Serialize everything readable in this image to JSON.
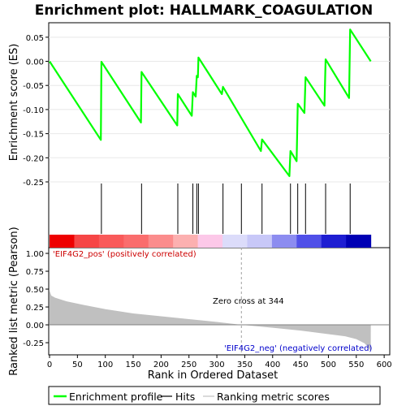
{
  "chart_data": {
    "type": "line",
    "title": "Enrichment plot: HALLMARK_COAGULATION",
    "top_panel": {
      "ylabel": "Enrichment score (ES)",
      "ylim": [
        -0.25,
        0.08
      ],
      "yticks": [
        0.05,
        0.0,
        -0.05,
        -0.1,
        -0.15,
        -0.2,
        -0.25
      ],
      "ytick_labels": [
        "0.05",
        "0.00",
        "-0.05",
        "-0.10",
        "-0.15",
        "-0.20",
        "-0.25"
      ],
      "series": {
        "x": [
          0,
          92,
          93,
          164,
          165,
          229,
          230,
          255,
          257,
          262,
          264,
          266,
          267,
          309,
          311,
          379,
          381,
          430,
          432,
          443,
          445,
          457,
          459,
          493,
          495,
          537,
          539,
          576
        ],
        "y": [
          0.0,
          -0.163,
          -0.001,
          -0.127,
          -0.022,
          -0.133,
          -0.068,
          -0.113,
          -0.064,
          -0.073,
          -0.03,
          -0.033,
          0.008,
          -0.068,
          -0.053,
          -0.186,
          -0.162,
          -0.238,
          -0.186,
          -0.207,
          -0.088,
          -0.107,
          -0.033,
          -0.092,
          0.004,
          -0.076,
          0.066,
          0.0
        ]
      },
      "color": "#00ff00"
    },
    "hits": [
      93,
      165,
      230,
      257,
      264,
      267,
      311,
      344,
      381,
      432,
      445,
      459,
      495,
      539
    ],
    "heat_bar": {
      "colors": [
        "#ee0000",
        "#f64646",
        "#f95a5a",
        "#fa6d6d",
        "#fb8c8c",
        "#fcb0b0",
        "#fcc8e8",
        "#dcdcfa",
        "#c8c8f8",
        "#8c8cf0",
        "#5050e8",
        "#1e1ed2",
        "#0000b4"
      ],
      "pos_label": "'EIF4G2_pos' (positively correlated)",
      "neg_label": "'EIF4G2_neg' (negatively correlated)",
      "pos_color": "#cc0000",
      "neg_color": "#0000cc"
    },
    "bottom_panel": {
      "ylabel": "Ranked list metric (Pearson)",
      "ylim": [
        -0.42,
        1.08
      ],
      "yticks": [
        1.0,
        0.75,
        0.5,
        0.25,
        0.0,
        -0.25
      ],
      "ytick_labels": [
        "1.00",
        "0.75",
        "0.50",
        "0.25",
        "0.00",
        "-0.25"
      ],
      "annotation": "Zero cross at 344",
      "zero_cross": 344,
      "fill_color": "#c0c0c0",
      "profile": {
        "x": [
          0,
          3,
          10,
          30,
          60,
          100,
          150,
          200,
          250,
          300,
          344,
          400,
          450,
          500,
          530,
          550,
          565,
          572,
          576
        ],
        "y": [
          0.48,
          0.41,
          0.38,
          0.33,
          0.28,
          0.22,
          0.16,
          0.12,
          0.08,
          0.04,
          0.0,
          -0.04,
          -0.08,
          -0.13,
          -0.16,
          -0.2,
          -0.26,
          -0.32,
          -0.38
        ]
      }
    },
    "xlabel": "Rank in Ordered Dataset",
    "xlim": [
      0,
      610
    ],
    "xticks": [
      0,
      50,
      100,
      150,
      200,
      250,
      300,
      350,
      400,
      450,
      500,
      550,
      600
    ],
    "legend": {
      "placement": "bottom",
      "items": [
        {
          "label": "Enrichment profile",
          "color": "#00ff00"
        },
        {
          "label": "Hits",
          "color": "#000000"
        },
        {
          "label": "Ranking metric scores",
          "color": "#c0c0c0"
        }
      ]
    }
  }
}
